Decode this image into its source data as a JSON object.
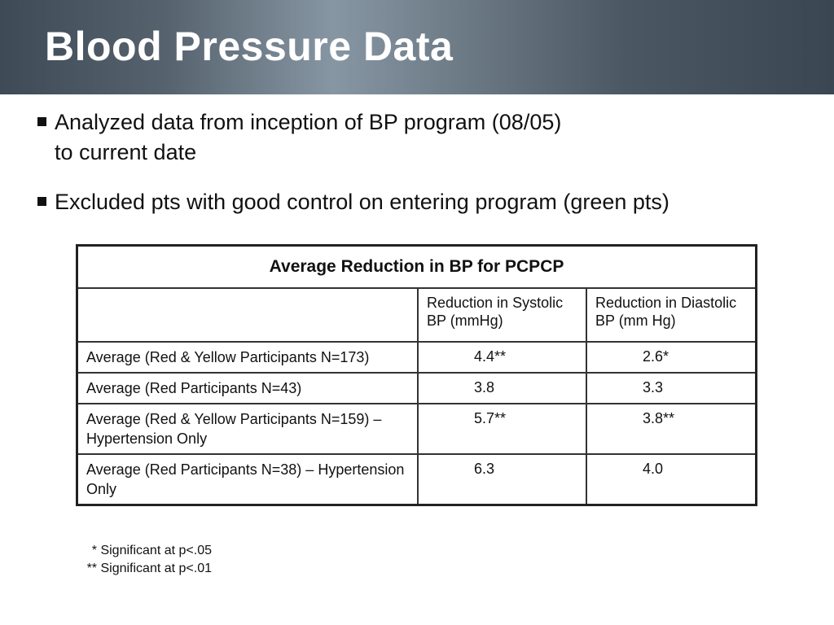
{
  "header": {
    "title": "Blood Pressure Data"
  },
  "bullets": [
    {
      "lines": [
        "Analyzed data from inception of BP program (08/05)",
        "to current date"
      ]
    },
    {
      "lines": [
        "Excluded pts with good control on entering program (green pts)"
      ]
    }
  ],
  "table": {
    "title": "Average Reduction in BP for PCPCP",
    "columns": [
      "Reduction in Systolic BP (mmHg)",
      "Reduction in Diastolic BP (mm Hg)"
    ],
    "rows": [
      [
        "Average (Red & Yellow Participants N=173)",
        "4.4**",
        "2.6*"
      ],
      [
        "Average (Red Participants N=43)",
        "3.8",
        "3.3"
      ],
      [
        "Average (Red & Yellow Participants N=159) – Hypertension Only",
        "5.7**",
        "3.8**"
      ],
      [
        "Average (Red Participants N=38) – Hypertension Only",
        "6.3",
        "4.0"
      ]
    ]
  },
  "footnotes": [
    "* Significant at p<.05",
    "** Significant at p<.01"
  ]
}
